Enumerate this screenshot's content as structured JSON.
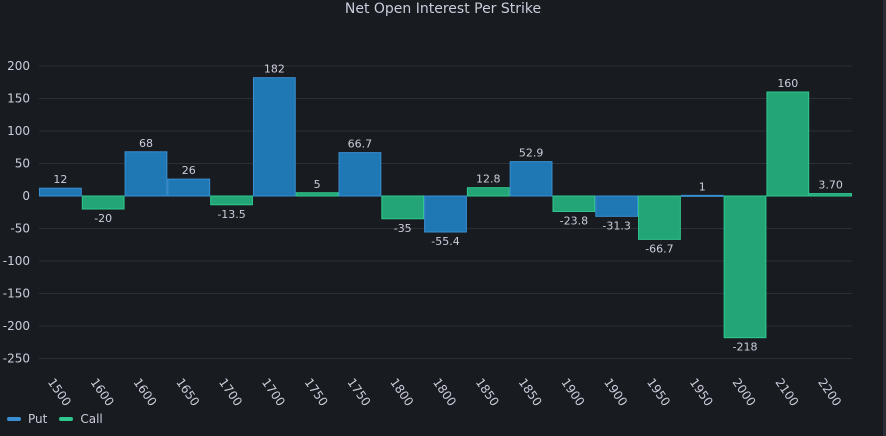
{
  "colors": {
    "background": "#181b1f",
    "put": "#3a8fd3",
    "put_fill": "#1f78b4",
    "call": "#2fc98f",
    "call_fill": "#23a577",
    "grid": "#2c2f35",
    "text": "#ccccdc"
  },
  "chart_data": {
    "type": "bar",
    "title": "Net Open Interest Per Strike",
    "xlabel": "",
    "ylabel": "",
    "ylim": [
      -275,
      225
    ],
    "yticks": [
      200,
      150,
      100,
      50,
      0,
      -50,
      -100,
      -150,
      -200,
      -250
    ],
    "grid": true,
    "legend_position": "bottom-left",
    "legend": [
      {
        "name": "Put",
        "color": "#3a8fd3"
      },
      {
        "name": "Call",
        "color": "#2fc98f"
      }
    ],
    "bars": [
      {
        "category": "1500",
        "value": 12,
        "label": "12",
        "series": "Put"
      },
      {
        "category": "1600",
        "value": -20,
        "label": "-20",
        "series": "Call"
      },
      {
        "category": "1600",
        "value": 68,
        "label": "68",
        "series": "Put"
      },
      {
        "category": "1650",
        "value": 26,
        "label": "26",
        "series": "Put"
      },
      {
        "category": "1700",
        "value": -13.5,
        "label": "-13.5",
        "series": "Call"
      },
      {
        "category": "1700",
        "value": 182,
        "label": "182",
        "series": "Put"
      },
      {
        "category": "1750",
        "value": 5,
        "label": "5",
        "series": "Call"
      },
      {
        "category": "1750",
        "value": 66.7,
        "label": "66.7",
        "series": "Put"
      },
      {
        "category": "1800",
        "value": -35,
        "label": "-35",
        "series": "Call"
      },
      {
        "category": "1800",
        "value": -55.4,
        "label": "-55.4",
        "series": "Put"
      },
      {
        "category": "1850",
        "value": 12.8,
        "label": "12.8",
        "series": "Call"
      },
      {
        "category": "1850",
        "value": 52.9,
        "label": "52.9",
        "series": "Put"
      },
      {
        "category": "1900",
        "value": -23.8,
        "label": "-23.8",
        "series": "Call"
      },
      {
        "category": "1900",
        "value": -31.3,
        "label": "-31.3",
        "series": "Put"
      },
      {
        "category": "1950",
        "value": -66.7,
        "label": "-66.7",
        "series": "Call"
      },
      {
        "category": "1950",
        "value": 1,
        "label": "1",
        "series": "Put"
      },
      {
        "category": "2000",
        "value": -218,
        "label": "-218",
        "series": "Call"
      },
      {
        "category": "2100",
        "value": 160,
        "label": "160",
        "series": "Call"
      },
      {
        "category": "2200",
        "value": 3.7,
        "label": "3.70",
        "series": "Call"
      }
    ]
  }
}
